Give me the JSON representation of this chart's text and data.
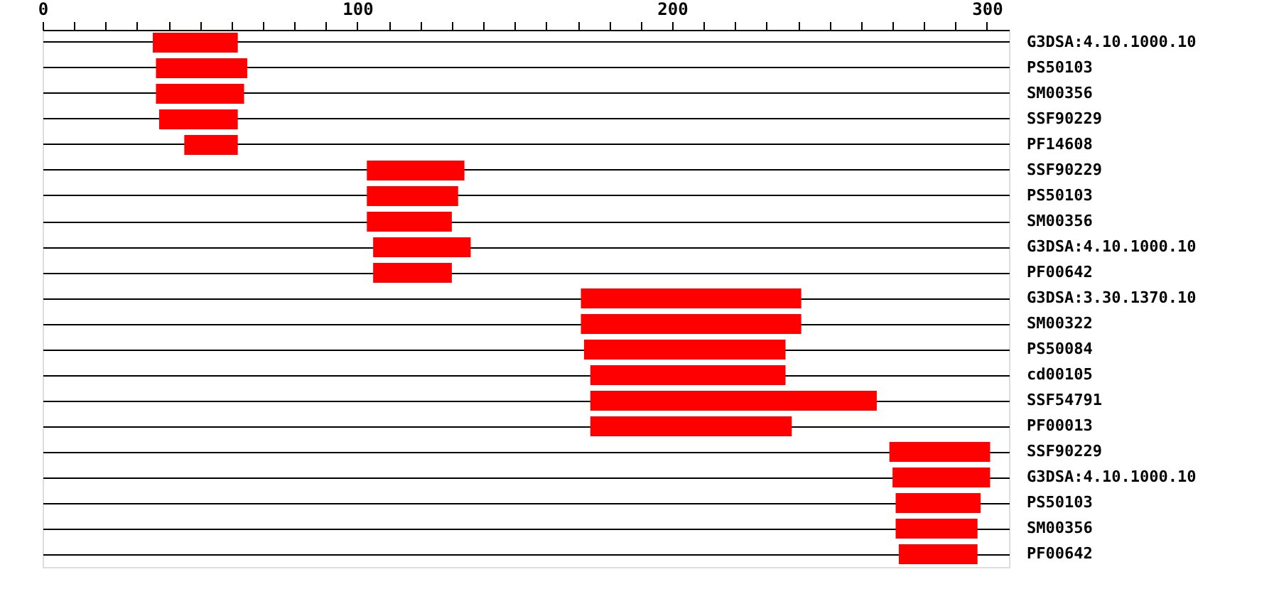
{
  "chart_data": {
    "type": "bar",
    "orientation": "horizontal",
    "categories": [
      "G3DSA:4.10.1000.10",
      "PS50103",
      "SM00356",
      "SSF90229",
      "PF14608",
      "SSF90229",
      "PS50103",
      "SM00356",
      "G3DSA:4.10.1000.10",
      "PF00642",
      "G3DSA:3.30.1370.10",
      "SM00322",
      "PS50084",
      "cd00105",
      "SSF54791",
      "PF00013",
      "SSF90229",
      "G3DSA:4.10.1000.10",
      "PS50103",
      "SM00356",
      "PF00642"
    ],
    "base": [
      35,
      36,
      36,
      37,
      45,
      103,
      103,
      103,
      105,
      105,
      171,
      171,
      172,
      174,
      174,
      174,
      269,
      270,
      271,
      271,
      272
    ],
    "values": [
      27,
      29,
      28,
      25,
      17,
      31,
      29,
      27,
      31,
      25,
      70,
      70,
      64,
      62,
      91,
      64,
      32,
      31,
      27,
      26,
      25
    ],
    "color": "#ff0000",
    "xlim": [
      0,
      307
    ],
    "xticks": [
      0,
      {
        "value": 10,
        "label": null
      },
      {
        "value": 20,
        "label": null
      },
      {
        "value": 30,
        "label": null
      },
      {
        "value": 40,
        "label": null
      },
      {
        "value": 50,
        "label": null
      },
      {
        "value": 60,
        "label": null
      },
      {
        "value": 70,
        "label": null
      },
      {
        "value": 80,
        "label": null
      },
      {
        "value": 90,
        "label": null
      },
      100,
      {
        "value": 110,
        "label": null
      },
      {
        "value": 120,
        "label": null
      },
      {
        "value": 130,
        "label": null
      },
      {
        "value": 140,
        "label": null
      },
      {
        "value": 150,
        "label": null
      },
      {
        "value": 160,
        "label": null
      },
      {
        "value": 170,
        "label": null
      },
      {
        "value": 180,
        "label": null
      },
      {
        "value": 190,
        "label": null
      },
      200,
      {
        "value": 210,
        "label": null
      },
      {
        "value": 220,
        "label": null
      },
      {
        "value": 230,
        "label": null
      },
      {
        "value": 240,
        "label": null
      },
      {
        "value": 250,
        "label": null
      },
      {
        "value": 260,
        "label": null
      },
      {
        "value": 270,
        "label": null
      },
      {
        "value": 280,
        "label": null
      },
      {
        "value": 290,
        "label": null
      },
      300
    ],
    "grid": "y"
  }
}
